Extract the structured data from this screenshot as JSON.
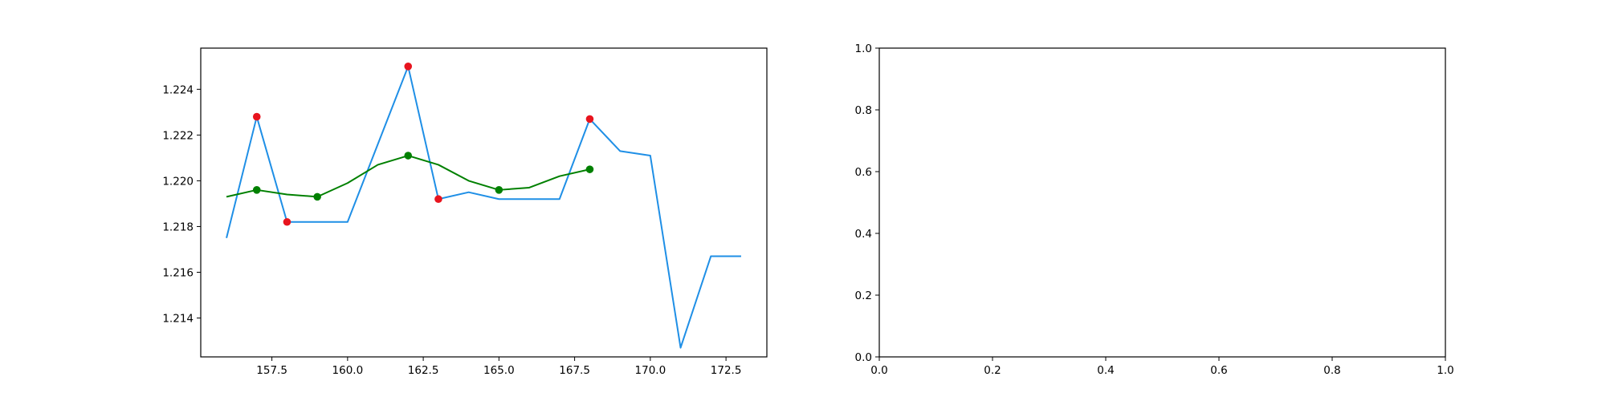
{
  "chart_data": [
    {
      "type": "line",
      "x": [
        156,
        157,
        158,
        159,
        160,
        161,
        162,
        163,
        164,
        165,
        166,
        167,
        168,
        169,
        170,
        171,
        172,
        173
      ],
      "xlim": [
        155.15,
        173.85
      ],
      "ylim": [
        1.2123,
        1.2258
      ],
      "xticks": [
        157.5,
        160.0,
        162.5,
        165.0,
        167.5,
        170.0,
        172.5
      ],
      "xtick_labels": [
        "157.5",
        "160.0",
        "162.5",
        "165.0",
        "167.5",
        "170.0",
        "172.5"
      ],
      "yticks": [
        1.214,
        1.216,
        1.218,
        1.22,
        1.222,
        1.224
      ],
      "ytick_labels": [
        "1.214",
        "1.216",
        "1.218",
        "1.220",
        "1.222",
        "1.224"
      ],
      "grid": false,
      "series": [
        {
          "color": "#1f8fe6",
          "style": "line",
          "x": [
            156,
            157,
            158,
            159,
            160,
            161,
            162,
            163,
            164,
            165,
            166,
            167,
            168,
            169,
            170,
            171,
            172,
            173
          ],
          "values": [
            1.2175,
            1.2228,
            1.2182,
            1.2182,
            1.2182,
            1.2216,
            1.225,
            1.2192,
            1.2195,
            1.2192,
            1.2192,
            1.2192,
            1.2227,
            1.2213,
            1.2211,
            1.2127,
            1.2167,
            1.2167
          ]
        },
        {
          "color": "#008000",
          "style": "line",
          "x": [
            156,
            157,
            158,
            159,
            160,
            161,
            162,
            163,
            164,
            165,
            166,
            167,
            168
          ],
          "values": [
            1.2193,
            1.2196,
            1.2194,
            1.2193,
            1.2199,
            1.2207,
            1.2211,
            1.2207,
            1.22,
            1.2196,
            1.2197,
            1.2202,
            1.2205
          ]
        },
        {
          "color": "#e8141e",
          "style": "scatter",
          "x": [
            157,
            158,
            162,
            163,
            168
          ],
          "values": [
            1.2228,
            1.2182,
            1.225,
            1.2192,
            1.2227
          ]
        },
        {
          "color": "#008000",
          "style": "scatter",
          "x": [
            157,
            159,
            162,
            165,
            168
          ],
          "values": [
            1.2196,
            1.2193,
            1.2211,
            1.2196,
            1.2205
          ]
        }
      ]
    },
    {
      "type": "line",
      "xlim": [
        0.0,
        1.0
      ],
      "ylim": [
        0.0,
        1.0
      ],
      "xticks": [
        0.0,
        0.2,
        0.4,
        0.6,
        0.8,
        1.0
      ],
      "xtick_labels": [
        "0.0",
        "0.2",
        "0.4",
        "0.6",
        "0.8",
        "1.0"
      ],
      "yticks": [
        0.0,
        0.2,
        0.4,
        0.6,
        0.8,
        1.0
      ],
      "ytick_labels": [
        "0.0",
        "0.2",
        "0.4",
        "0.6",
        "0.8",
        "1.0"
      ],
      "grid": false,
      "series": []
    }
  ]
}
